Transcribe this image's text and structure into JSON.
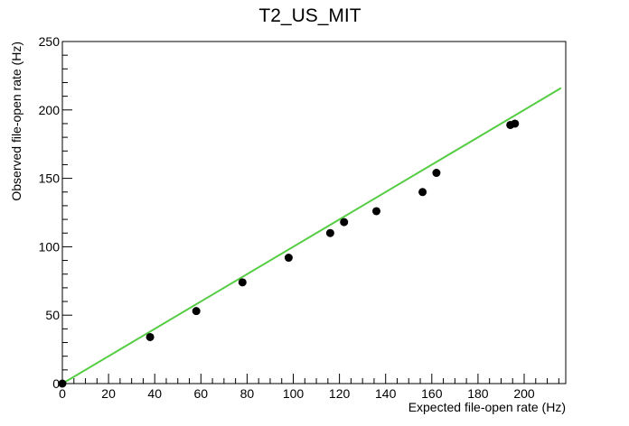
{
  "chart_data": {
    "type": "scatter",
    "title": "T2_US_MIT",
    "xlabel": "Expected file-open rate (Hz)",
    "ylabel": "Observed file-open rate (Hz)",
    "xlim": [
      0,
      218
    ],
    "ylim": [
      0,
      250
    ],
    "x_ticks": [
      0,
      20,
      40,
      60,
      80,
      100,
      120,
      140,
      160,
      180,
      200
    ],
    "y_ticks": [
      0,
      50,
      100,
      150,
      200,
      250
    ],
    "x_tick_labels": [
      "0",
      "20",
      "40",
      "60",
      "80",
      "100",
      "120",
      "140",
      "160",
      "180",
      "200"
    ],
    "y_tick_labels": [
      "0",
      "50",
      "100",
      "150",
      "200",
      "250"
    ],
    "grid": false,
    "legend": "none",
    "series": [
      {
        "points": [
          {
            "x": 0,
            "y": 0
          },
          {
            "x": 38,
            "y": 34
          },
          {
            "x": 58,
            "y": 53
          },
          {
            "x": 78,
            "y": 74
          },
          {
            "x": 98,
            "y": 92
          },
          {
            "x": 116,
            "y": 110
          },
          {
            "x": 122,
            "y": 118
          },
          {
            "x": 136,
            "y": 126
          },
          {
            "x": 156,
            "y": 140
          },
          {
            "x": 162,
            "y": 154
          },
          {
            "x": 194,
            "y": 189
          },
          {
            "x": 196,
            "y": 190
          }
        ],
        "color": "#000000"
      }
    ],
    "reference_line": {
      "x": [
        0,
        216
      ],
      "y": [
        0,
        216
      ],
      "color": "#55cc44"
    }
  }
}
